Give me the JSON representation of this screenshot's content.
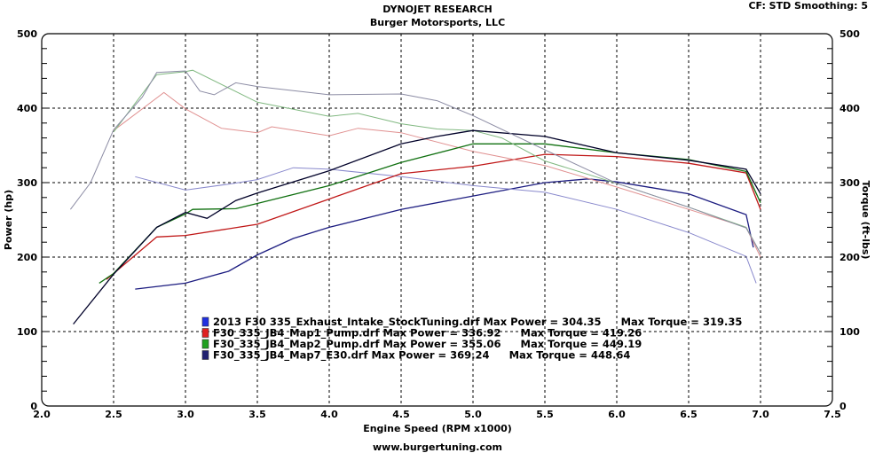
{
  "header": {
    "title": "DYNOJET RESEARCH",
    "subtitle": "Burger Motorsports, LLC",
    "settings": "CF: STD  Smoothing: 5"
  },
  "footer": {
    "url": "www.burgertuning.com"
  },
  "chart_data": {
    "type": "line",
    "title": "DYNOJET RESEARCH",
    "xlabel": "Engine Speed (RPM x1000)",
    "ylabel": "Power (hp)",
    "y2label": "Torque (ft-lbs)",
    "xlim": [
      2.0,
      7.5
    ],
    "ylim": [
      0,
      500
    ],
    "y2lim": [
      0,
      500
    ],
    "xticks": [
      "2.0",
      "2.5",
      "3.0",
      "3.5",
      "4.0",
      "4.5",
      "5.0",
      "5.5",
      "6.0",
      "6.5",
      "7.0",
      "7.5"
    ],
    "yticks": [
      "0",
      "100",
      "200",
      "300",
      "400",
      "500"
    ],
    "grid": true,
    "legend_position": "bottom-center",
    "legend": [
      {
        "file": "2013 F30 335_Exhaust_Intake_StockTuning.drf",
        "max_power": "Max Power = 304.35",
        "max_torque": "Max Torque = 319.35",
        "color": "#2030e0"
      },
      {
        "file": "F30_335_JB4_Map1_Pump.drf",
        "max_power": "Max Power = 336.92",
        "max_torque": "Max Torque = 419.26",
        "color": "#e02020"
      },
      {
        "file": "F30_335_JB4_Map2_Pump.drf",
        "max_power": "Max Power = 355.06",
        "max_torque": "Max Torque = 449.19",
        "color": "#20a020"
      },
      {
        "file": "F30_335_JB4_Map7_E30.drf",
        "max_power": "Max Power = 369.24",
        "max_torque": "Max Torque = 448.64",
        "color": "#202070"
      }
    ],
    "series": [
      {
        "run": 0,
        "measure": "power",
        "color": "#1c1c80",
        "x": [
          2.65,
          3.0,
          3.3,
          3.5,
          3.75,
          4.0,
          4.5,
          5.0,
          5.5,
          5.8,
          6.0,
          6.5,
          6.9,
          6.95
        ],
        "y": [
          157,
          165,
          181,
          203,
          225,
          240,
          264,
          282,
          300,
          305,
          301,
          285,
          257,
          213
        ]
      },
      {
        "run": 0,
        "measure": "torque",
        "color": "#8888cc",
        "x": [
          2.65,
          3.0,
          3.3,
          3.5,
          3.75,
          4.0,
          4.5,
          5.0,
          5.5,
          6.0,
          6.5,
          6.9,
          6.97
        ],
        "y": [
          308,
          290,
          298,
          304,
          320,
          318,
          308,
          296,
          287,
          264,
          233,
          201,
          165
        ]
      },
      {
        "run": 1,
        "measure": "power",
        "color": "#c01818",
        "x": [
          2.45,
          2.5,
          2.8,
          3.0,
          3.5,
          4.0,
          4.5,
          5.0,
          5.5,
          6.0,
          6.5,
          6.9,
          7.0
        ],
        "y": [
          170,
          178,
          227,
          229,
          244,
          278,
          312,
          322,
          338,
          335,
          326,
          313,
          264
        ]
      },
      {
        "run": 1,
        "measure": "torque",
        "color": "#e09090",
        "x": [
          2.5,
          2.85,
          3.0,
          3.25,
          3.5,
          3.6,
          4.0,
          4.2,
          4.5,
          5.0,
          5.5,
          6.0,
          6.5,
          6.9,
          7.0
        ],
        "y": [
          370,
          421,
          399,
          373,
          367,
          375,
          363,
          373,
          367,
          342,
          323,
          294,
          264,
          240,
          200
        ]
      },
      {
        "run": 2,
        "measure": "power",
        "color": "#107010",
        "x": [
          2.4,
          2.5,
          2.8,
          3.0,
          3.05,
          3.35,
          3.5,
          4.0,
          4.5,
          5.0,
          5.5,
          6.0,
          6.5,
          6.9,
          7.0
        ],
        "y": [
          165,
          178,
          240,
          258,
          264,
          265,
          272,
          296,
          327,
          352,
          352,
          340,
          331,
          315,
          273
        ]
      },
      {
        "run": 2,
        "measure": "torque",
        "color": "#80b880",
        "x": [
          2.5,
          2.8,
          3.0,
          3.05,
          3.5,
          4.0,
          4.2,
          4.5,
          4.75,
          5.0,
          5.2,
          5.5,
          6.0,
          6.5,
          6.9,
          7.0
        ],
        "y": [
          368,
          445,
          449,
          451,
          408,
          389,
          393,
          379,
          372,
          370,
          360,
          329,
          299,
          267,
          240,
          205
        ]
      },
      {
        "run": 3,
        "measure": "power",
        "color": "#000028",
        "x": [
          2.22,
          2.5,
          2.8,
          3.0,
          3.15,
          3.35,
          3.5,
          4.0,
          4.5,
          4.75,
          5.0,
          5.5,
          6.0,
          6.5,
          6.9,
          7.0
        ],
        "y": [
          110,
          177,
          240,
          260,
          252,
          276,
          286,
          316,
          352,
          362,
          370,
          362,
          340,
          330,
          318,
          285
        ]
      },
      {
        "run": 3,
        "measure": "torque",
        "color": "#8c8ca4",
        "x": [
          2.2,
          2.34,
          2.5,
          2.7,
          2.8,
          3.0,
          3.1,
          3.2,
          3.35,
          3.5,
          4.0,
          4.5,
          4.75,
          5.0,
          5.5,
          6.0,
          6.5,
          6.9,
          7.0
        ],
        "y": [
          264,
          300,
          371,
          415,
          448,
          450,
          423,
          418,
          434,
          429,
          418,
          419,
          410,
          390,
          344,
          299,
          267,
          239,
          205
        ]
      }
    ]
  }
}
